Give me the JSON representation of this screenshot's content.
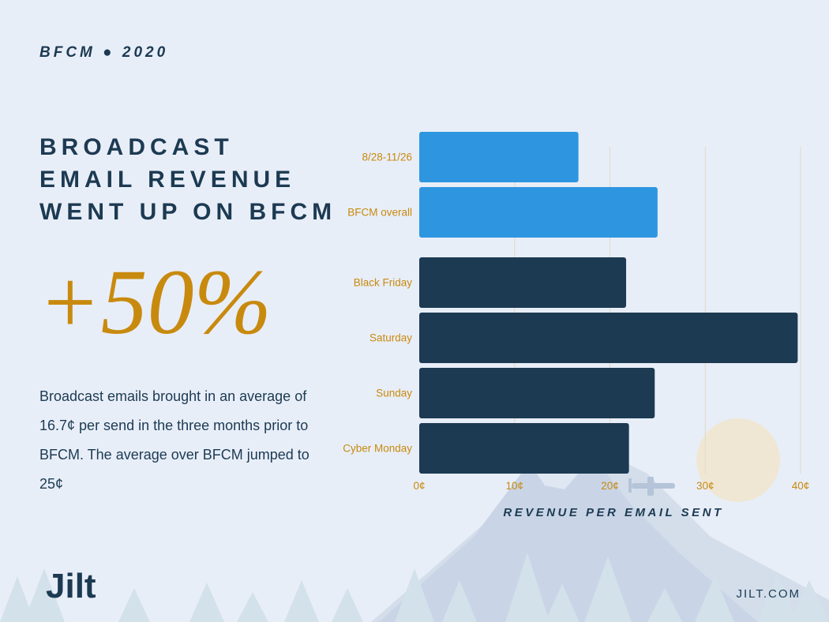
{
  "header": {
    "eyebrow": "BFCM ● 2020"
  },
  "headline": "BROADCAST EMAIL REVENUE WENT UP ON BFCM",
  "stat": "+50%",
  "body_text": "Broadcast emails brought in an average of 16.7¢ per send in the three months prior to BFCM. The average over BFCM jumped to 25¢",
  "footer": {
    "logo": "Jilt",
    "site": "JILT.COM"
  },
  "colors": {
    "background": "#e8eef8",
    "text_dark": "#1c3a52",
    "accent_gold": "#c88a0e",
    "bar_light": "#2e96e0",
    "bar_dark": "#1c3a52"
  },
  "chart_data": {
    "type": "bar",
    "orientation": "horizontal",
    "categories": [
      "8/28-11/26",
      "BFCM overall",
      "Black Friday",
      "Saturday",
      "Sunday",
      "Cyber Monday"
    ],
    "values": [
      16.7,
      25,
      21.7,
      39.7,
      24.7,
      22
    ],
    "bar_colors": [
      "#2e96e0",
      "#2e96e0",
      "#1c3a52",
      "#1c3a52",
      "#1c3a52",
      "#1c3a52"
    ],
    "xlabel": "REVENUE PER EMAIL SENT",
    "xlim": [
      0,
      40
    ],
    "ticks": [
      0,
      10,
      20,
      30,
      40
    ],
    "tick_labels": [
      "0¢",
      "10¢",
      "20¢",
      "30¢",
      "40¢"
    ],
    "grid": true
  }
}
